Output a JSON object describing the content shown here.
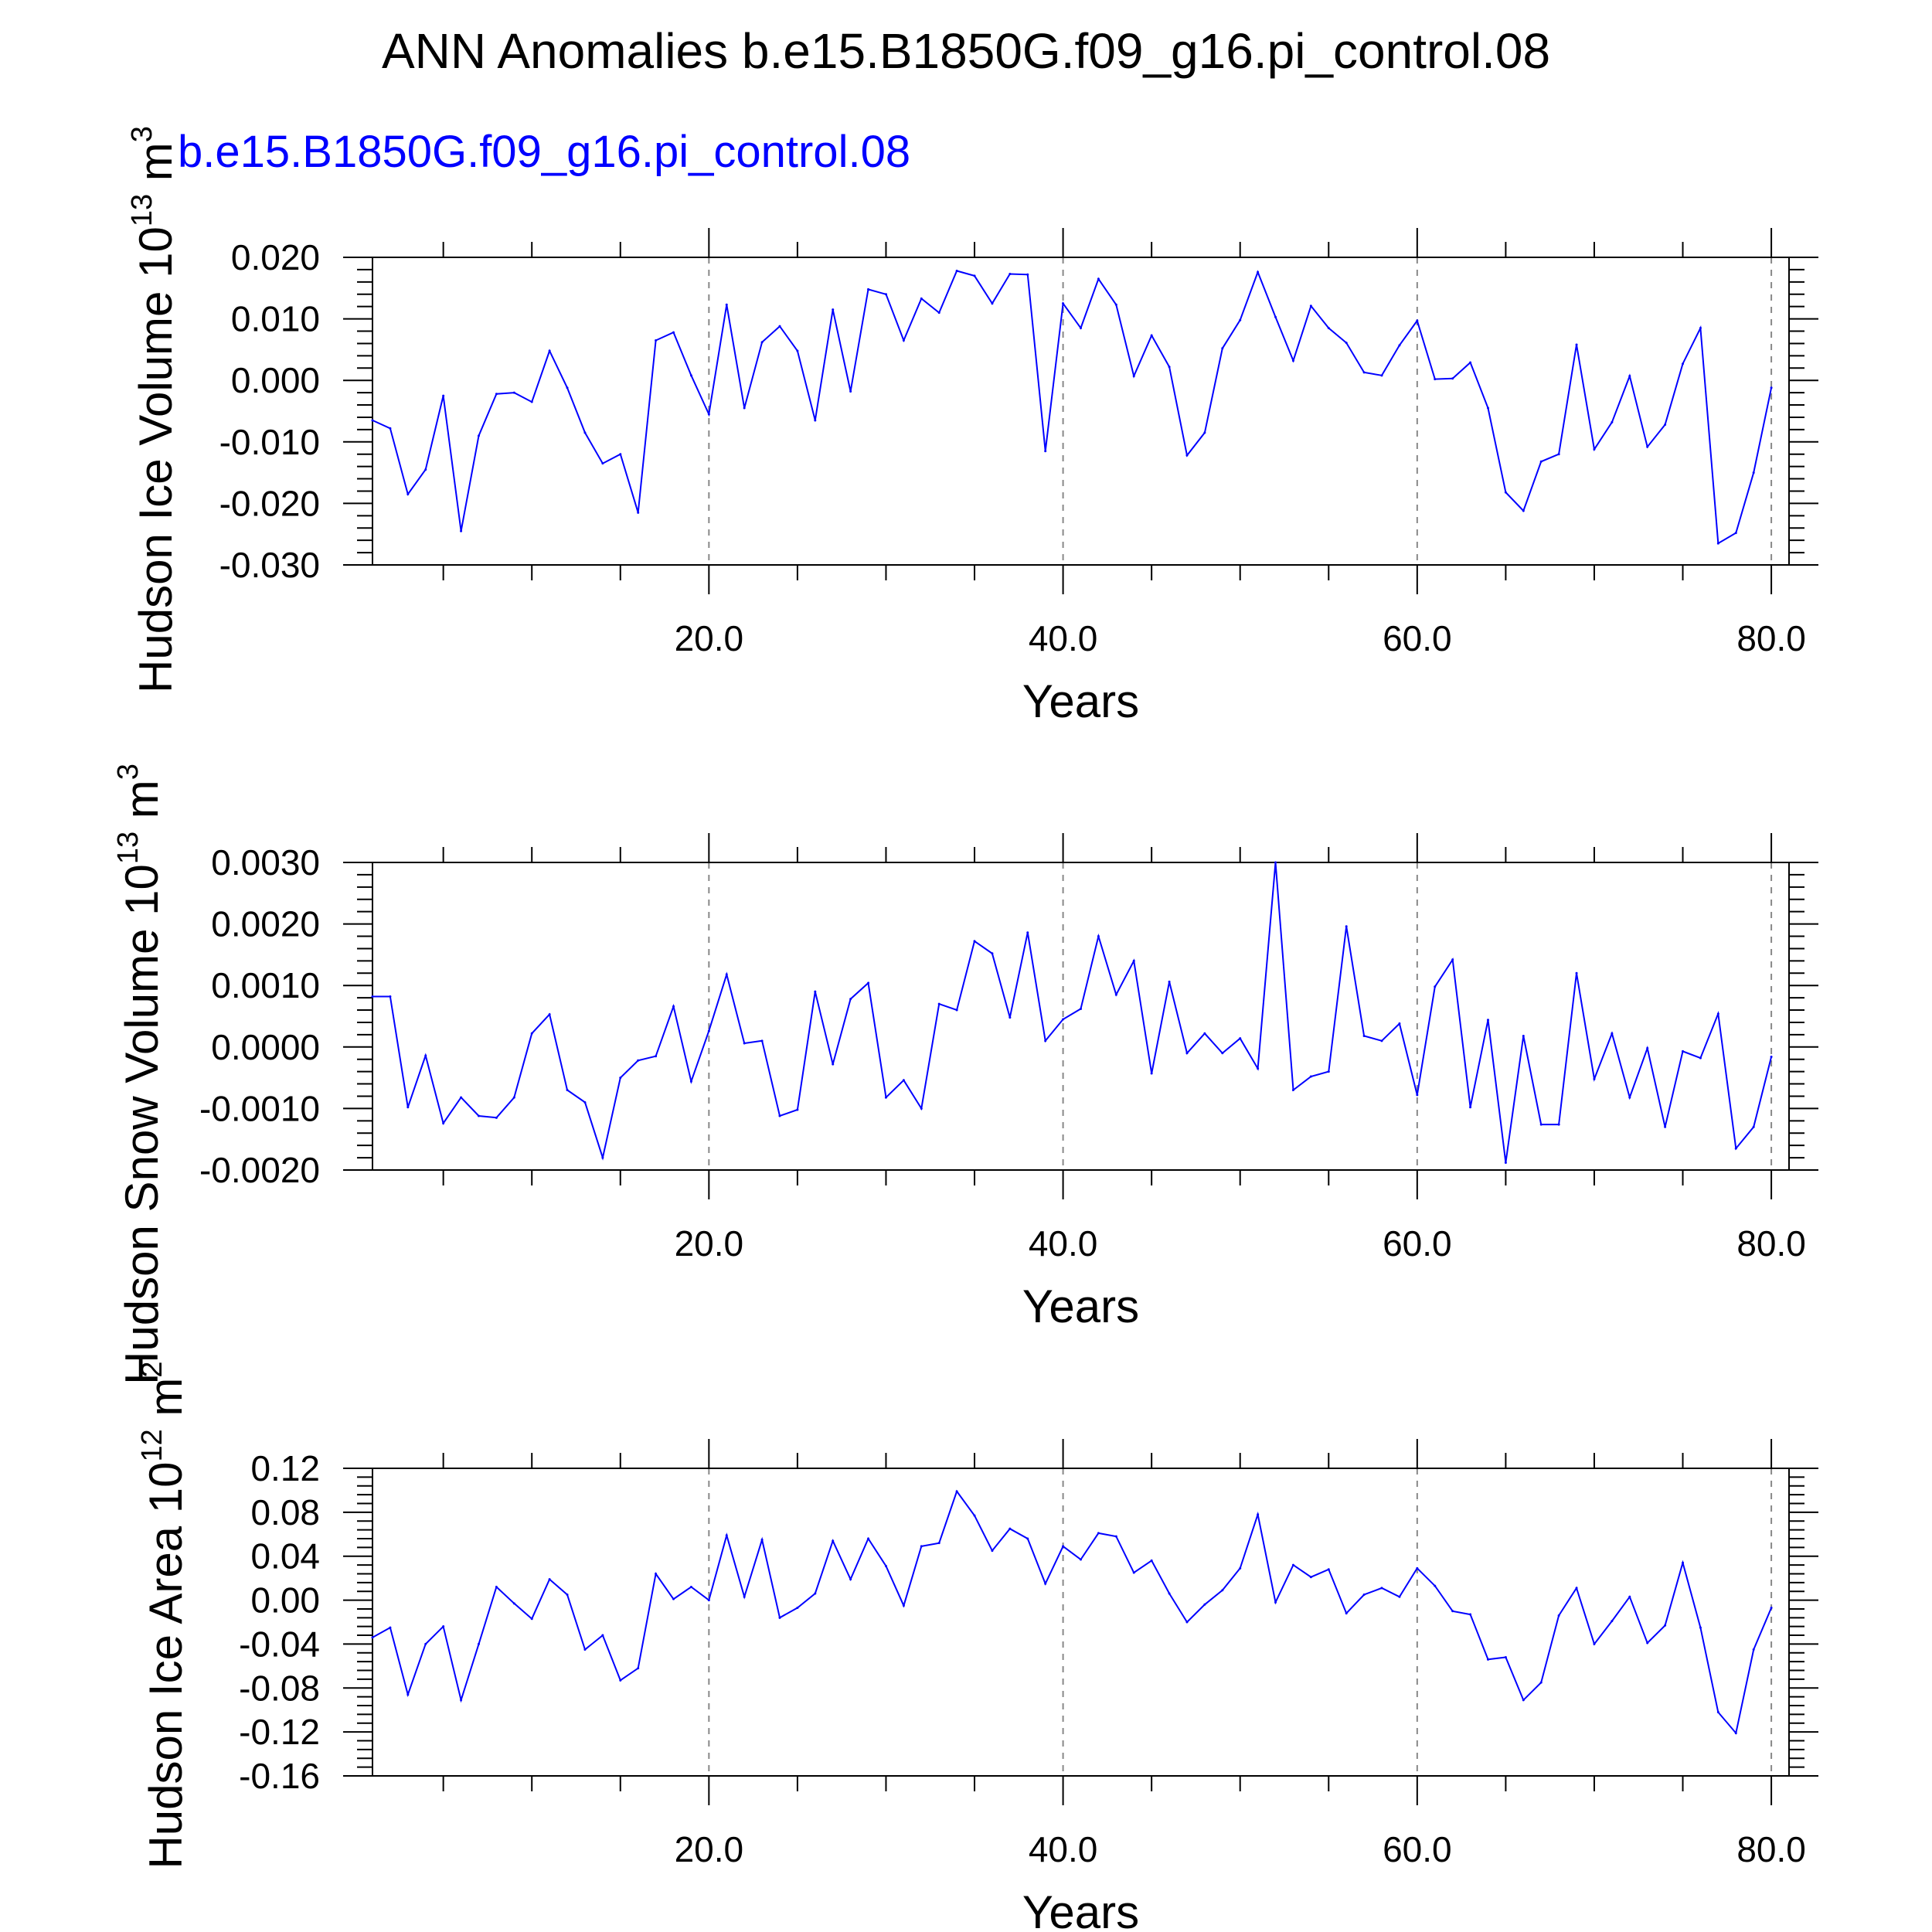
{
  "title": "ANN Anomalies b.e15.B1850G.f09_g16.pi_control.08",
  "case_label": "b.e15.B1850G.f09_g16.pi_control.08",
  "colors": {
    "line": "#0000ff",
    "case_label": "#0000ff",
    "axis": "#000000",
    "grid": "#888888"
  },
  "chart_data": [
    {
      "type": "line",
      "xlabel": "Years",
      "ylabel": {
        "text": "Hudson Ice Volume 10",
        "sup": "13",
        "unit": " m",
        "unit_sup": "3"
      },
      "xlim": [
        1,
        81
      ],
      "ylim": [
        -0.03,
        0.02
      ],
      "xticks": [
        "20.0",
        "40.0",
        "60.0",
        "80.0"
      ],
      "xtick_values": [
        20,
        40,
        60,
        80
      ],
      "yticks": [
        "0.020",
        "0.010",
        "0.000",
        "-0.010",
        "-0.020",
        "-0.030"
      ],
      "ytick_values": [
        0.02,
        0.01,
        0.0,
        -0.01,
        -0.02,
        -0.03
      ],
      "grid": "vertical dashed at major x ticks",
      "x": [
        1,
        2,
        3,
        4,
        5,
        6,
        7,
        8,
        9,
        10,
        11,
        12,
        13,
        14,
        15,
        16,
        17,
        18,
        19,
        20,
        21,
        22,
        23,
        24,
        25,
        26,
        27,
        28,
        29,
        30,
        31,
        32,
        33,
        34,
        35,
        36,
        37,
        38,
        39,
        40,
        41,
        42,
        43,
        44,
        45,
        46,
        47,
        48,
        49,
        50,
        51,
        52,
        53,
        54,
        55,
        56,
        57,
        58,
        59,
        60,
        61,
        62,
        63,
        64,
        65,
        66,
        67,
        68,
        69,
        70,
        71,
        72,
        73,
        74,
        75,
        76,
        77,
        78,
        79,
        80
      ],
      "values": [
        -0.0065,
        -0.0078,
        -0.0185,
        -0.0145,
        -0.0025,
        -0.0245,
        -0.009,
        -0.0022,
        -0.002,
        -0.0035,
        0.0048,
        -0.0012,
        -0.0085,
        -0.0135,
        -0.012,
        -0.0215,
        0.0065,
        0.0078,
        0.0008,
        -0.0055,
        0.0123,
        -0.0045,
        0.0062,
        0.0088,
        0.0048,
        -0.0065,
        0.0115,
        -0.0018,
        0.0148,
        0.014,
        0.0065,
        0.0133,
        0.011,
        0.0178,
        0.017,
        0.0125,
        0.0173,
        0.0172,
        -0.0115,
        0.0125,
        0.0085,
        0.0165,
        0.0123,
        0.0007,
        0.0073,
        0.0022,
        -0.0122,
        -0.0085,
        0.0052,
        0.0098,
        0.0176,
        0.0103,
        0.0032,
        0.0121,
        0.0085,
        0.0061,
        0.0013,
        0.0008,
        0.0057,
        0.0097,
        0.0002,
        0.0003,
        0.0029,
        -0.0045,
        -0.0182,
        -0.0212,
        -0.0132,
        -0.012,
        0.0058,
        -0.0112,
        -0.0068,
        0.0007,
        -0.0108,
        -0.0072,
        0.0027,
        0.0085,
        -0.0265,
        -0.0248,
        -0.015,
        -0.0012
      ]
    },
    {
      "type": "line",
      "xlabel": "Years",
      "ylabel": {
        "text": "Hudson Snow Volume 10",
        "sup": "13",
        "unit": " m",
        "unit_sup": "3"
      },
      "xlim": [
        1,
        81
      ],
      "ylim": [
        -0.002,
        0.003
      ],
      "xticks": [
        "20.0",
        "40.0",
        "60.0",
        "80.0"
      ],
      "xtick_values": [
        20,
        40,
        60,
        80
      ],
      "yticks": [
        "0.0030",
        "0.0020",
        "0.0010",
        "0.0000",
        "-0.0010",
        "-0.0020"
      ],
      "ytick_values": [
        0.003,
        0.002,
        0.001,
        0.0,
        -0.001,
        -0.002
      ],
      "grid": "vertical dashed at major x ticks",
      "x": [
        1,
        2,
        3,
        4,
        5,
        6,
        7,
        8,
        9,
        10,
        11,
        12,
        13,
        14,
        15,
        16,
        17,
        18,
        19,
        20,
        21,
        22,
        23,
        24,
        25,
        26,
        27,
        28,
        29,
        30,
        31,
        32,
        33,
        34,
        35,
        36,
        37,
        38,
        39,
        40,
        41,
        42,
        43,
        44,
        45,
        46,
        47,
        48,
        49,
        50,
        51,
        52,
        53,
        54,
        55,
        56,
        57,
        58,
        59,
        60,
        61,
        62,
        63,
        64,
        65,
        66,
        67,
        68,
        69,
        70,
        71,
        72,
        73,
        74,
        75,
        76,
        77,
        78,
        79,
        80
      ],
      "values": [
        0.00082,
        0.00082,
        -0.00098,
        -0.00014,
        -0.00124,
        -0.00082,
        -0.00112,
        -0.00115,
        -0.00082,
        0.00022,
        0.00053,
        -0.0007,
        -0.0009,
        -0.0018,
        -0.0005,
        -0.00022,
        -0.00015,
        0.00066,
        -0.00056,
        0.00026,
        0.00118,
        6e-05,
        0.0001,
        -0.00112,
        -0.00102,
        0.0009,
        -0.00028,
        0.00078,
        0.00104,
        -0.00082,
        -0.00054,
        -0.001,
        0.0007,
        0.0006,
        0.00172,
        0.00152,
        0.00048,
        0.00186,
        0.0001,
        0.00045,
        0.00062,
        0.0018,
        0.00085,
        0.0014,
        -0.00043,
        0.00106,
        -0.0001,
        0.00022,
        -0.0001,
        0.00014,
        -0.00035,
        0.003,
        -0.0007,
        -0.00048,
        -0.0004,
        0.00196,
        0.00018,
        0.0001,
        0.00038,
        -0.00078,
        0.00098,
        0.00142,
        -0.00098,
        0.00044,
        -0.00188,
        0.00018,
        -0.00126,
        -0.00126,
        0.0012,
        -0.00052,
        0.00022,
        -0.00082,
        -2e-05,
        -0.0013,
        -7e-05,
        -0.00018,
        0.00054,
        -0.00165,
        -0.0013,
        -0.00016
      ]
    },
    {
      "type": "line",
      "xlabel": "Years",
      "ylabel": {
        "text": "Hudson Ice Area 10",
        "sup": "12",
        "unit": " m",
        "unit_sup": "2"
      },
      "xlim": [
        1,
        81
      ],
      "ylim": [
        -0.16,
        0.12
      ],
      "xticks": [
        "20.0",
        "40.0",
        "60.0",
        "80.0"
      ],
      "xtick_values": [
        20,
        40,
        60,
        80
      ],
      "yticks": [
        "0.12",
        "0.08",
        "0.04",
        "0.00",
        "-0.04",
        "-0.08",
        "-0.12",
        "-0.16"
      ],
      "ytick_values": [
        0.12,
        0.08,
        0.04,
        0.0,
        -0.04,
        -0.08,
        -0.12,
        -0.16
      ],
      "grid": "vertical dashed at major x ticks",
      "x": [
        1,
        2,
        3,
        4,
        5,
        6,
        7,
        8,
        9,
        10,
        11,
        12,
        13,
        14,
        15,
        16,
        17,
        18,
        19,
        20,
        21,
        22,
        23,
        24,
        25,
        26,
        27,
        28,
        29,
        30,
        31,
        32,
        33,
        34,
        35,
        36,
        37,
        38,
        39,
        40,
        41,
        42,
        43,
        44,
        45,
        46,
        47,
        48,
        49,
        50,
        51,
        52,
        53,
        54,
        55,
        56,
        57,
        58,
        59,
        60,
        61,
        62,
        63,
        64,
        65,
        66,
        67,
        68,
        69,
        70,
        71,
        72,
        73,
        74,
        75,
        76,
        77,
        78,
        79,
        80
      ],
      "values": [
        -0.034,
        -0.025,
        -0.086,
        -0.04,
        -0.024,
        -0.091,
        -0.04,
        0.012,
        -0.003,
        -0.017,
        0.019,
        0.005,
        -0.045,
        -0.032,
        -0.073,
        -0.062,
        0.024,
        0.001,
        0.012,
        0.0,
        0.059,
        0.003,
        0.055,
        -0.016,
        -0.007,
        0.006,
        0.054,
        0.019,
        0.056,
        0.031,
        -0.005,
        0.049,
        0.052,
        0.099,
        0.077,
        0.045,
        0.065,
        0.056,
        0.015,
        0.049,
        0.037,
        0.061,
        0.058,
        0.025,
        0.036,
        0.006,
        -0.02,
        -0.004,
        0.009,
        0.029,
        0.078,
        -0.002,
        0.032,
        0.021,
        0.028,
        -0.012,
        0.005,
        0.011,
        0.003,
        0.029,
        0.013,
        -0.01,
        -0.013,
        -0.054,
        -0.052,
        -0.091,
        -0.075,
        -0.014,
        0.011,
        -0.04,
        -0.019,
        0.003,
        -0.039,
        -0.023,
        0.034,
        -0.025,
        -0.102,
        -0.121,
        -0.045,
        -0.007
      ]
    }
  ]
}
